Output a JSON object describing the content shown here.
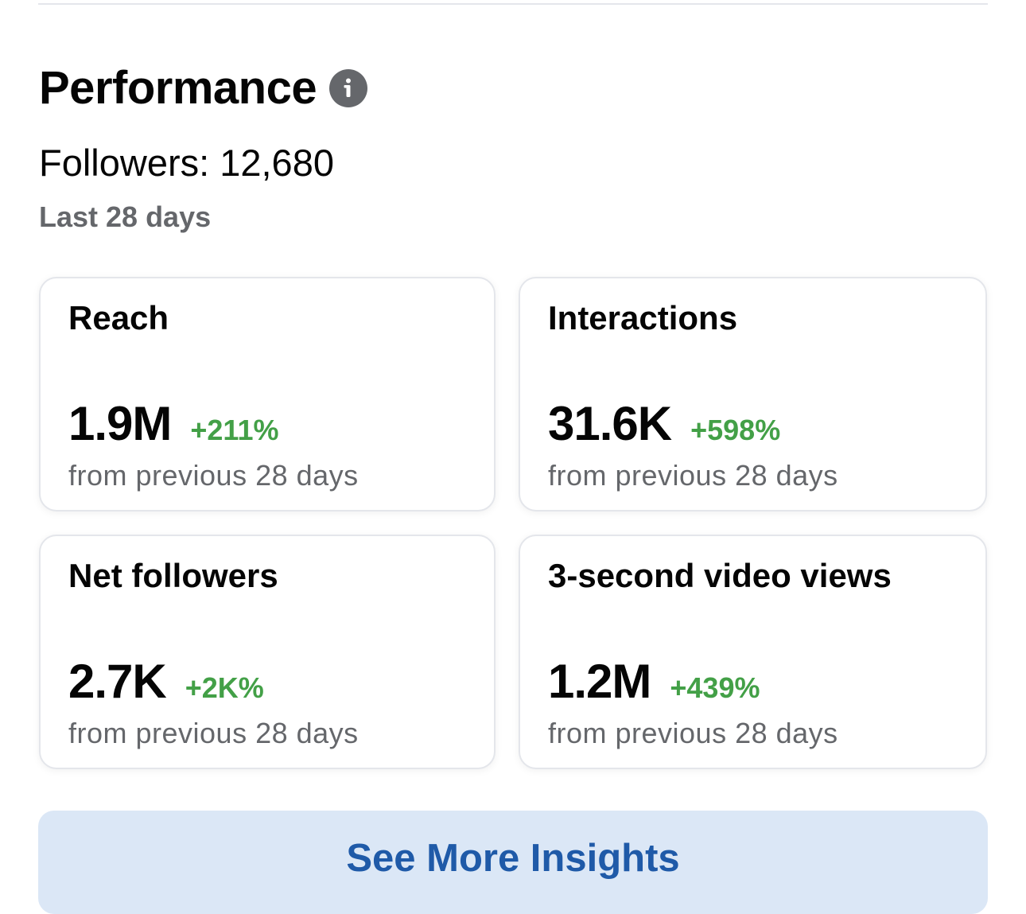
{
  "performance": {
    "title": "Performance",
    "info_icon": "info-icon",
    "followers_text": "Followers: 12,680",
    "period_label": "Last 28 days"
  },
  "cards": [
    {
      "title": "Reach",
      "value": "1.9M",
      "change": "+211%",
      "subtext": "from previous 28 days"
    },
    {
      "title": "Interactions",
      "value": "31.6K",
      "change": "+598%",
      "subtext": "from previous 28 days"
    },
    {
      "title": "Net followers",
      "value": "2.7K",
      "change": "+2K%",
      "subtext": "from previous 28 days"
    },
    {
      "title": "3-second video views",
      "value": "1.2M",
      "change": "+439%",
      "subtext": "from previous 28 days"
    }
  ],
  "see_more_label": "See More Insights",
  "colors": {
    "positive_change": "#43a047",
    "secondary_text": "#65676b",
    "button_background": "#dbe7f6",
    "button_text": "#1f5aa8"
  }
}
